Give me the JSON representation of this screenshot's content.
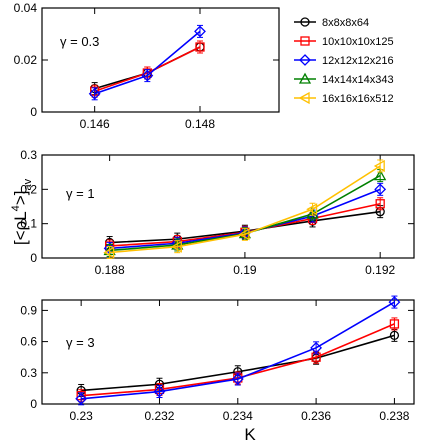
{
  "ylabel_parts": [
    "[<ρL",
    "4",
    ">]",
    "av"
  ],
  "xlabel": "K",
  "legend": [
    {
      "name": "8x8x8x64",
      "color": "#000000",
      "marker": "circle"
    },
    {
      "name": "10x10x10x125",
      "color": "#ff0000",
      "marker": "square"
    },
    {
      "name": "12x12x12x216",
      "color": "#0000ff",
      "marker": "diamond"
    },
    {
      "name": "14x14x14x343",
      "color": "#008000",
      "marker": "triangle-up"
    },
    {
      "name": "16x16x16x512",
      "color": "#ffc000",
      "marker": "triangle-left"
    }
  ],
  "chart_data": [
    {
      "type": "line",
      "annotation": "γ = 0.3",
      "xlim": [
        0.145,
        0.1495
      ],
      "ylim": [
        0,
        0.04
      ],
      "xticks": [
        0.146,
        0.148
      ],
      "xticklabels": [
        "0.146",
        "0.148"
      ],
      "yticks": [
        0,
        0.02,
        0.04
      ],
      "yticklabels": [
        "0",
        "0.02",
        "0.04"
      ],
      "series": [
        {
          "name": "8x8x8x64",
          "x": [
            0.146,
            0.147,
            0.148
          ],
          "y": [
            0.009,
            0.015,
            0.025
          ]
        },
        {
          "name": "10x10x10x125",
          "x": [
            0.146,
            0.147,
            0.148
          ],
          "y": [
            0.008,
            0.015,
            0.025
          ]
        },
        {
          "name": "12x12x12x216",
          "x": [
            0.146,
            0.147,
            0.148
          ],
          "y": [
            0.007,
            0.014,
            0.031
          ]
        }
      ]
    },
    {
      "type": "line",
      "annotation": "γ = 1",
      "xlim": [
        0.187,
        0.1925
      ],
      "ylim": [
        0,
        0.3
      ],
      "xticks": [
        0.188,
        0.19,
        0.192
      ],
      "xticklabels": [
        "0.188",
        "0.19",
        "0.192"
      ],
      "yticks": [
        0,
        0.1,
        0.2,
        0.3
      ],
      "yticklabels": [
        "0",
        "0.1",
        "0.2",
        "0.3"
      ],
      "series": [
        {
          "name": "8x8x8x64",
          "x": [
            0.188,
            0.189,
            0.19,
            0.191,
            0.192
          ],
          "y": [
            0.045,
            0.055,
            0.078,
            0.108,
            0.135
          ]
        },
        {
          "name": "10x10x10x125",
          "x": [
            0.188,
            0.189,
            0.19,
            0.191,
            0.192
          ],
          "y": [
            0.035,
            0.048,
            0.075,
            0.115,
            0.158
          ]
        },
        {
          "name": "12x12x12x216",
          "x": [
            0.188,
            0.189,
            0.19,
            0.191,
            0.192
          ],
          "y": [
            0.028,
            0.043,
            0.073,
            0.122,
            0.2
          ]
        },
        {
          "name": "14x14x14x343",
          "x": [
            0.188,
            0.189,
            0.19,
            0.191,
            0.192
          ],
          "y": [
            0.022,
            0.038,
            0.071,
            0.128,
            0.24
          ]
        },
        {
          "name": "16x16x16x512",
          "x": [
            0.188,
            0.189,
            0.19,
            0.191,
            0.192
          ],
          "y": [
            0.016,
            0.033,
            0.069,
            0.142,
            0.268
          ]
        }
      ]
    },
    {
      "type": "line",
      "annotation": "γ = 3",
      "xlim": [
        0.229,
        0.2385
      ],
      "ylim": [
        0,
        1.0
      ],
      "xticks": [
        0.23,
        0.232,
        0.234,
        0.236,
        0.238
      ],
      "xticklabels": [
        "0.23",
        "0.232",
        "0.234",
        "0.236",
        "0.238"
      ],
      "yticks": [
        0,
        0.3,
        0.6,
        0.9
      ],
      "yticklabels": [
        "0",
        "0.3",
        "0.6",
        "0.9"
      ],
      "series": [
        {
          "name": "8x8x8x64",
          "x": [
            0.23,
            0.232,
            0.234,
            0.236,
            0.238
          ],
          "y": [
            0.13,
            0.19,
            0.31,
            0.44,
            0.66
          ]
        },
        {
          "name": "10x10x10x125",
          "x": [
            0.23,
            0.232,
            0.234,
            0.236,
            0.238
          ],
          "y": [
            0.08,
            0.14,
            0.25,
            0.45,
            0.77
          ]
        },
        {
          "name": "12x12x12x216",
          "x": [
            0.23,
            0.232,
            0.234,
            0.236,
            0.238
          ],
          "y": [
            0.05,
            0.12,
            0.24,
            0.54,
            0.98
          ]
        }
      ]
    }
  ]
}
